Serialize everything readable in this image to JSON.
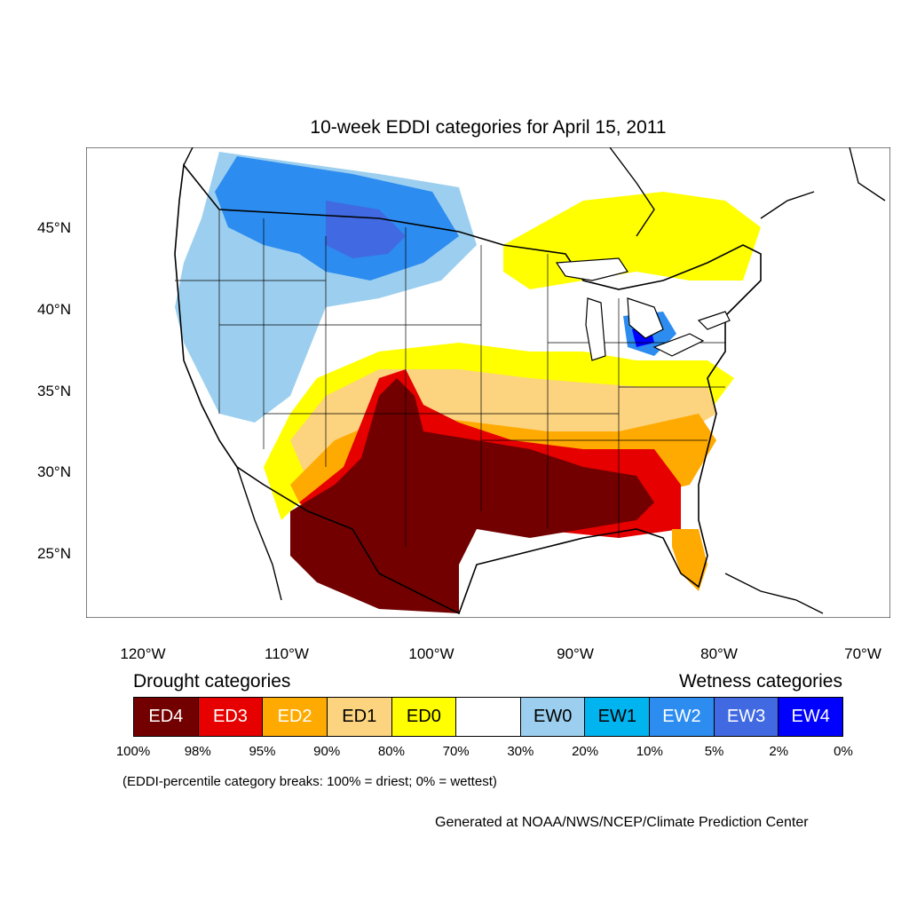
{
  "title": "10-week EDDI categories for April 15, 2011",
  "map": {
    "lat_labels": [
      "45°N",
      "40°N",
      "35°N",
      "30°N",
      "25°N"
    ],
    "lon_labels": [
      "120°W",
      "110°W",
      "100°W",
      "90°W",
      "80°W",
      "70°W"
    ]
  },
  "legend": {
    "drought_heading": "Drought categories",
    "wetness_heading": "Wetness categories",
    "categories": [
      {
        "label": "ED4",
        "color": "#730000",
        "text_color": "#ffffff"
      },
      {
        "label": "ED3",
        "color": "#e60000",
        "text_color": "#ffffff"
      },
      {
        "label": "ED2",
        "color": "#ffaa00",
        "text_color": "#ffffff"
      },
      {
        "label": "ED1",
        "color": "#fcd37f",
        "text_color": "#000000"
      },
      {
        "label": "ED0",
        "color": "#ffff00",
        "text_color": "#000000"
      },
      {
        "label": "",
        "color": "#ffffff",
        "text_color": "#000000"
      },
      {
        "label": "EW0",
        "color": "#9ccfef",
        "text_color": "#000000"
      },
      {
        "label": "EW1",
        "color": "#00b4f0",
        "text_color": "#000000"
      },
      {
        "label": "EW2",
        "color": "#2d8cf0",
        "text_color": "#ffffff"
      },
      {
        "label": "EW3",
        "color": "#4169e1",
        "text_color": "#ffffff"
      },
      {
        "label": "EW4",
        "color": "#0000ff",
        "text_color": "#ffffff"
      }
    ],
    "breaks": [
      "100%",
      "98%",
      "95%",
      "90%",
      "80%",
      "70%",
      "30%",
      "20%",
      "10%",
      "5%",
      "2%",
      "0%"
    ]
  },
  "note": "(EDDI-percentile category breaks: 100% = driest; 0% = wettest)",
  "credit": "Generated at NOAA/NWS/NCEP/Climate Prediction Center"
}
